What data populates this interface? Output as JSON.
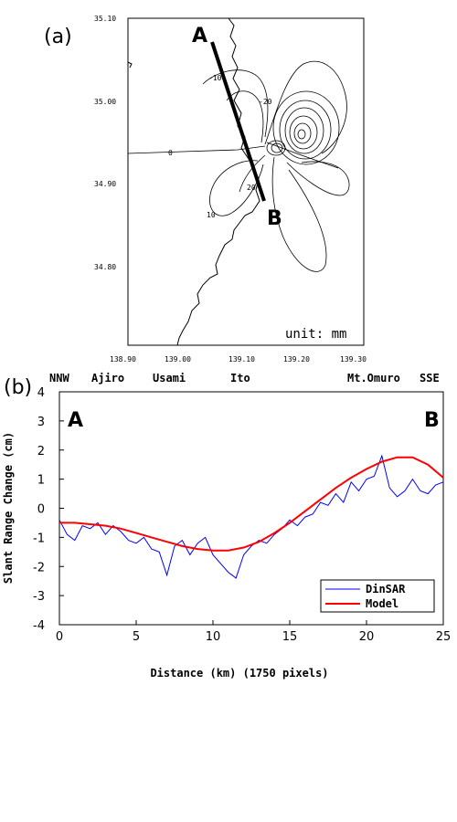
{
  "panel_a": {
    "label": "(a)",
    "point_a": "A",
    "point_b": "B",
    "unit_label": "unit: mm",
    "x_ticks": [
      "138.90",
      "139.00",
      "139.10",
      "139.20",
      "139.30"
    ],
    "y_ticks": [
      "35.10",
      "35.00",
      "34.90",
      "34.80"
    ],
    "contour_labels": [
      "-10",
      "-20",
      "0",
      "20",
      "10"
    ]
  },
  "panel_b": {
    "label": "(b)",
    "place_names": [
      "NNW",
      "Ajiro",
      "Usami",
      "Ito",
      "Mt.Omuro",
      "SSE"
    ],
    "point_a": "A",
    "point_b": "B"
  },
  "chart_data": {
    "type": "line",
    "title": "",
    "xlabel": "Distance (km) (1750 pixels)",
    "ylabel": "Slant Range Change (cm)",
    "xlim": [
      0,
      25
    ],
    "ylim": [
      -4,
      4
    ],
    "x_ticks": [
      0,
      5,
      10,
      15,
      20,
      25
    ],
    "y_ticks": [
      -4,
      -3,
      -2,
      -1,
      0,
      1,
      2,
      3,
      4
    ],
    "legend_position": "bottom-right",
    "series": [
      {
        "name": "DinSAR",
        "color": "#0000ff",
        "x": [
          0,
          0.5,
          1,
          1.5,
          2,
          2.5,
          3,
          3.5,
          4,
          4.5,
          5,
          5.5,
          6,
          6.5,
          7,
          7.5,
          8,
          8.5,
          9,
          9.5,
          10,
          10.5,
          11,
          11.5,
          12,
          12.5,
          13,
          13.5,
          14,
          14.5,
          15,
          15.5,
          16,
          16.5,
          17,
          17.5,
          18,
          18.5,
          19,
          19.5,
          20,
          20.5,
          21,
          21.5,
          22,
          22.5,
          23,
          23.5,
          24,
          24.5,
          25
        ],
        "values": [
          -0.4,
          -0.9,
          -1.1,
          -0.6,
          -0.7,
          -0.5,
          -0.9,
          -0.6,
          -0.8,
          -1.1,
          -1.2,
          -1.0,
          -1.4,
          -1.5,
          -2.3,
          -1.3,
          -1.1,
          -1.6,
          -1.2,
          -1.0,
          -1.6,
          -1.9,
          -2.2,
          -2.4,
          -1.6,
          -1.3,
          -1.1,
          -1.2,
          -0.9,
          -0.7,
          -0.4,
          -0.6,
          -0.3,
          -0.2,
          0.2,
          0.1,
          0.5,
          0.2,
          0.9,
          0.6,
          1.0,
          1.1,
          1.8,
          0.7,
          0.4,
          0.6,
          1.0,
          0.6,
          0.5,
          0.8,
          0.9
        ]
      },
      {
        "name": "Model",
        "color": "#ff0000",
        "x": [
          0,
          1,
          2,
          3,
          4,
          5,
          6,
          7,
          8,
          9,
          10,
          11,
          12,
          13,
          14,
          15,
          16,
          17,
          18,
          19,
          20,
          21,
          22,
          23,
          24,
          25
        ],
        "values": [
          -0.5,
          -0.5,
          -0.55,
          -0.6,
          -0.7,
          -0.85,
          -1.0,
          -1.15,
          -1.3,
          -1.4,
          -1.45,
          -1.45,
          -1.35,
          -1.15,
          -0.85,
          -0.5,
          -0.1,
          0.3,
          0.7,
          1.05,
          1.35,
          1.6,
          1.75,
          1.75,
          1.5,
          1.05
        ]
      }
    ]
  }
}
